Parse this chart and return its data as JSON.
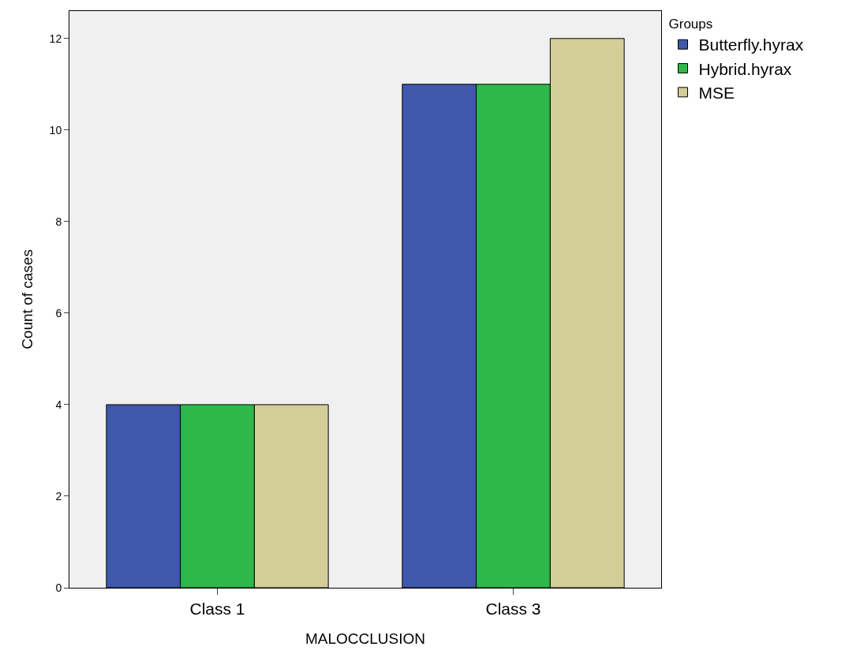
{
  "chart_data": {
    "type": "bar",
    "xlabel": "MALOCCLUSION",
    "ylabel": "Count of cases",
    "legend_title": "Groups",
    "categories": [
      "Class 1",
      "Class 3"
    ],
    "series": [
      {
        "name": "Butterfly.hyrax",
        "color": "#3e58ac",
        "values": [
          4,
          11
        ]
      },
      {
        "name": "Hybrid.hyrax",
        "color": "#2eb84a",
        "values": [
          4,
          11
        ]
      },
      {
        "name": "MSE",
        "color": "#d3ce97",
        "values": [
          4,
          12
        ]
      }
    ],
    "ylim": [
      0,
      12.6
    ],
    "yticks": [
      0,
      2,
      4,
      6,
      8,
      10,
      12
    ],
    "grid": false,
    "legend": "top right"
  }
}
